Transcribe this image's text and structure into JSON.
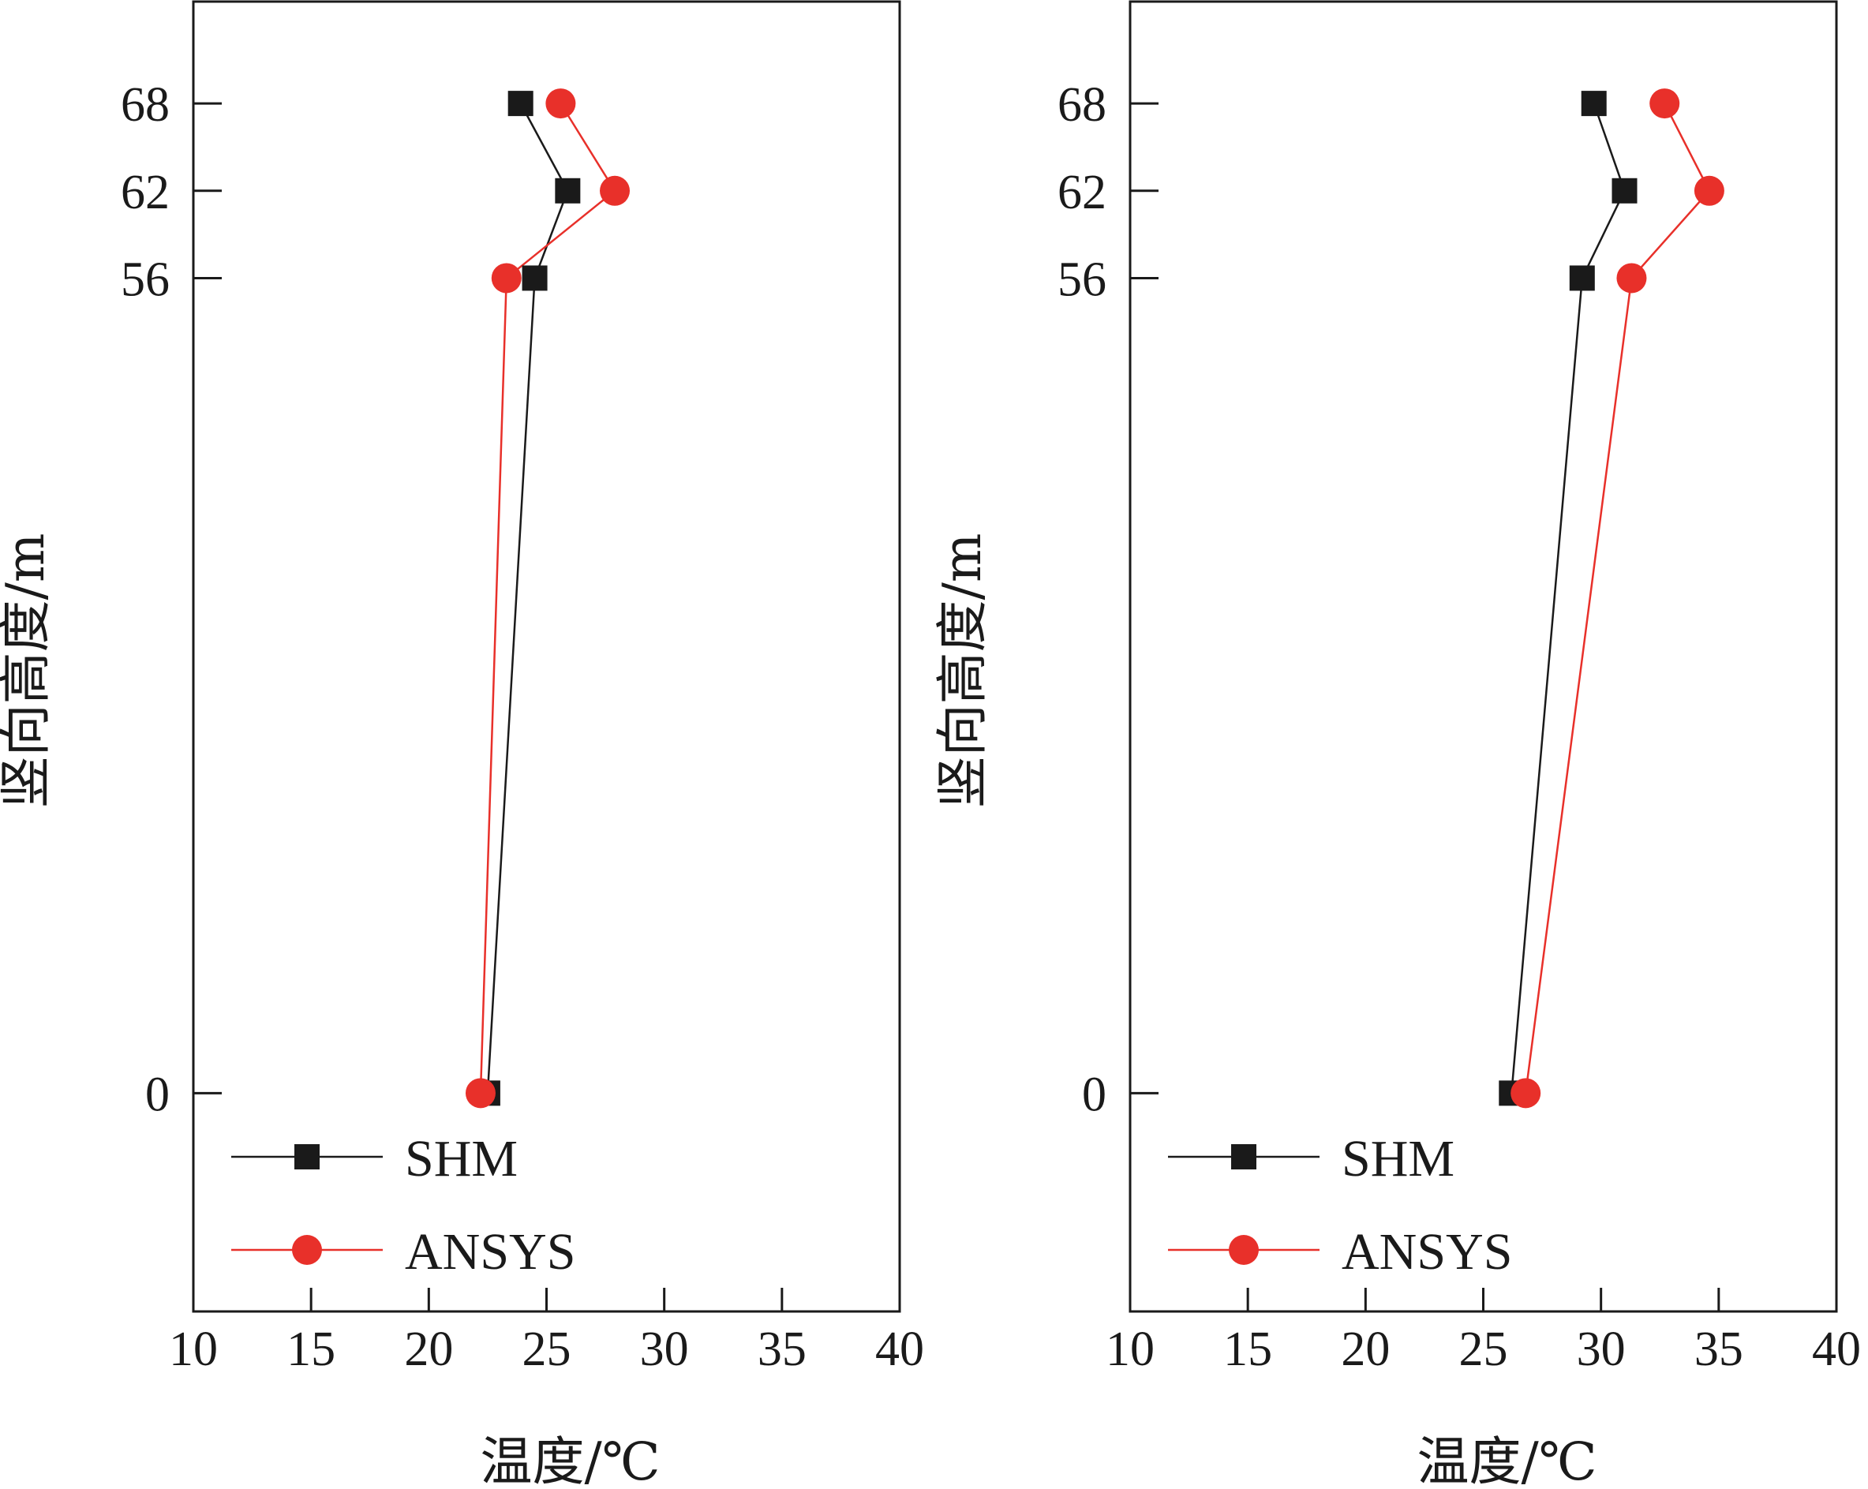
{
  "chart_data": [
    {
      "type": "line",
      "xlabel": "温度/℃",
      "ylabel": "竖向高度/m",
      "xlim": [
        10,
        40
      ],
      "ylim": [
        -15,
        75
      ],
      "xticks": [
        10,
        15,
        20,
        25,
        30,
        35,
        40
      ],
      "yticks": [
        0,
        56,
        62,
        68
      ],
      "grid": false,
      "legend_position": "bottom-left",
      "series": [
        {
          "name": "SHM",
          "color": "#1a1a1a",
          "marker": "square",
          "points": [
            [
              22.5,
              0
            ],
            [
              24.5,
              56
            ],
            [
              25.9,
              62
            ],
            [
              23.9,
              68
            ]
          ]
        },
        {
          "name": "ANSYS",
          "color": "#e8302a",
          "marker": "circle",
          "points": [
            [
              22.2,
              0
            ],
            [
              23.3,
              56
            ],
            [
              27.9,
              62
            ],
            [
              25.6,
              68
            ]
          ]
        }
      ]
    },
    {
      "type": "line",
      "xlabel": "温度/℃",
      "ylabel": "竖向高度/m",
      "xlim": [
        10,
        40
      ],
      "ylim": [
        -15,
        75
      ],
      "xticks": [
        10,
        15,
        20,
        25,
        30,
        35,
        40
      ],
      "yticks": [
        0,
        56,
        62,
        68
      ],
      "grid": false,
      "legend_position": "bottom-left",
      "series": [
        {
          "name": "SHM",
          "color": "#1a1a1a",
          "marker": "square",
          "points": [
            [
              26.2,
              0
            ],
            [
              29.2,
              56
            ],
            [
              31.0,
              62
            ],
            [
              29.7,
              68
            ]
          ]
        },
        {
          "name": "ANSYS",
          "color": "#e8302a",
          "marker": "circle",
          "points": [
            [
              26.8,
              0
            ],
            [
              31.3,
              56
            ],
            [
              34.6,
              62
            ],
            [
              32.7,
              68
            ]
          ]
        }
      ]
    }
  ]
}
